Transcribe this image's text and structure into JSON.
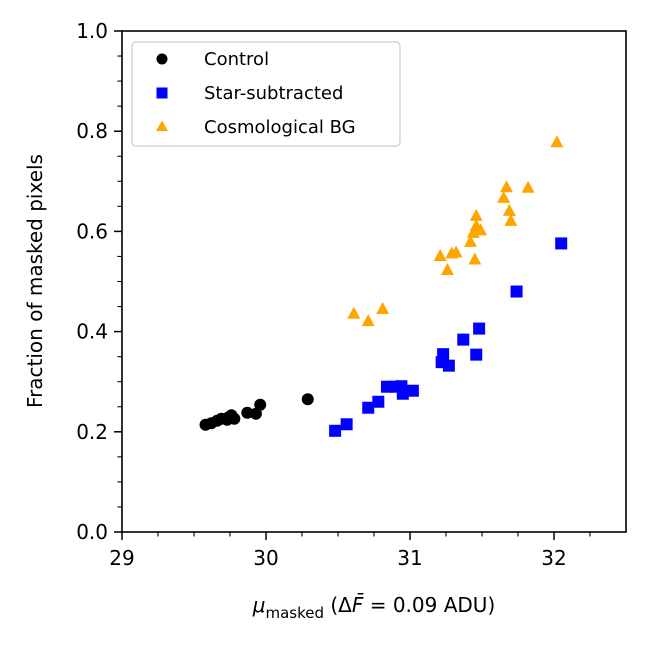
{
  "chart_data": {
    "type": "scatter",
    "title": "",
    "xlabel": {
      "mu": "μ",
      "sub": "masked",
      "open": " (Δ",
      "fbar": "F̄",
      "rest": " = 0.09 ADU)"
    },
    "ylabel": "Fraction of masked pixels",
    "xlim": [
      29.0,
      32.5
    ],
    "ylim": [
      0.0,
      1.0
    ],
    "xticks": [
      29,
      30,
      31,
      32
    ],
    "xtick_labels": [
      "29",
      "30",
      "31",
      "32"
    ],
    "xminor": [
      29.25,
      29.5,
      29.75,
      30.25,
      30.5,
      30.75,
      31.25,
      31.5,
      31.75,
      32.25
    ],
    "yticks": [
      0.0,
      0.2,
      0.4,
      0.6,
      0.8,
      1.0
    ],
    "ytick_labels": [
      "0.0",
      "0.2",
      "0.4",
      "0.6",
      "0.8",
      "1.0"
    ],
    "yminor": [
      0.05,
      0.1,
      0.15,
      0.25,
      0.3,
      0.35,
      0.45,
      0.5,
      0.55,
      0.65,
      0.7,
      0.75,
      0.85,
      0.9,
      0.95
    ],
    "legend_position": "top-left",
    "series": [
      {
        "name": "Control",
        "marker": "circle",
        "color": "#000000",
        "points": [
          [
            29.58,
            0.214
          ],
          [
            29.62,
            0.217
          ],
          [
            29.66,
            0.222
          ],
          [
            29.69,
            0.226
          ],
          [
            29.73,
            0.224
          ],
          [
            29.74,
            0.229
          ],
          [
            29.76,
            0.233
          ],
          [
            29.78,
            0.226
          ],
          [
            29.87,
            0.238
          ],
          [
            29.93,
            0.236
          ],
          [
            29.96,
            0.254
          ],
          [
            30.29,
            0.265
          ]
        ]
      },
      {
        "name": "Star-subtracted",
        "marker": "square",
        "color": "#0000ff",
        "points": [
          [
            30.48,
            0.202
          ],
          [
            30.56,
            0.215
          ],
          [
            30.71,
            0.248
          ],
          [
            30.78,
            0.26
          ],
          [
            30.84,
            0.29
          ],
          [
            30.9,
            0.29
          ],
          [
            30.94,
            0.291
          ],
          [
            30.95,
            0.276
          ],
          [
            31.02,
            0.282
          ],
          [
            31.22,
            0.339
          ],
          [
            31.23,
            0.355
          ],
          [
            31.27,
            0.332
          ],
          [
            31.37,
            0.384
          ],
          [
            31.46,
            0.354
          ],
          [
            31.48,
            0.406
          ],
          [
            31.74,
            0.48
          ],
          [
            32.05,
            0.576
          ]
        ]
      },
      {
        "name": "Cosmological BG",
        "marker": "triangle",
        "color": "#ffa500",
        "points": [
          [
            30.61,
            0.437
          ],
          [
            30.71,
            0.422
          ],
          [
            30.81,
            0.446
          ],
          [
            31.21,
            0.552
          ],
          [
            31.26,
            0.524
          ],
          [
            31.29,
            0.557
          ],
          [
            31.32,
            0.559
          ],
          [
            31.42,
            0.58
          ],
          [
            31.44,
            0.598
          ],
          [
            31.45,
            0.545
          ],
          [
            31.46,
            0.612
          ],
          [
            31.46,
            0.632
          ],
          [
            31.49,
            0.603
          ],
          [
            31.65,
            0.668
          ],
          [
            31.67,
            0.689
          ],
          [
            31.69,
            0.642
          ],
          [
            31.7,
            0.622
          ],
          [
            31.82,
            0.688
          ],
          [
            32.02,
            0.779
          ]
        ]
      }
    ]
  }
}
